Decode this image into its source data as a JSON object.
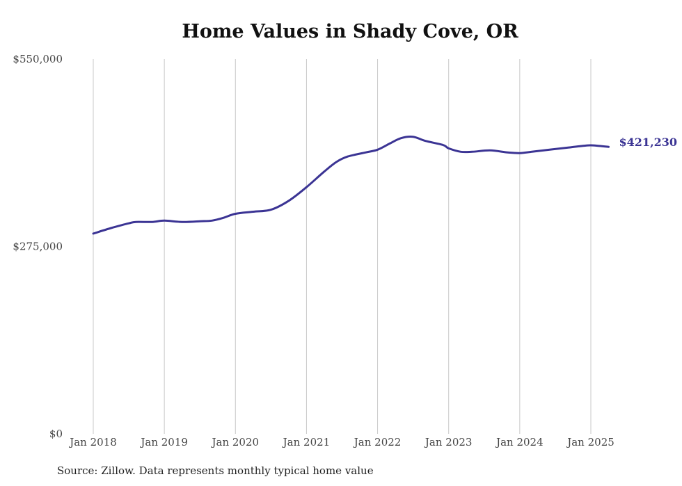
{
  "chart_data": {
    "type": "line",
    "title": "Home Values in Shady Cove, OR",
    "source": "Source: Zillow. Data represents monthly typical home value",
    "ylim": [
      0,
      550000
    ],
    "y_ticks": [
      {
        "value": 0,
        "label": "$0"
      },
      {
        "value": 275000,
        "label": "$275,000"
      },
      {
        "value": 550000,
        "label": "$550,000"
      }
    ],
    "x_ticks": [
      {
        "value": 2018,
        "label": "Jan 2018"
      },
      {
        "value": 2019,
        "label": "Jan 2019"
      },
      {
        "value": 2020,
        "label": "Jan 2020"
      },
      {
        "value": 2021,
        "label": "Jan 2021"
      },
      {
        "value": 2022,
        "label": "Jan 2022"
      },
      {
        "value": 2023,
        "label": "Jan 2023"
      },
      {
        "value": 2024,
        "label": "Jan 2024"
      },
      {
        "value": 2025,
        "label": "Jan 2025"
      }
    ],
    "xlim": [
      2018,
      2025.25
    ],
    "grid": "vertical",
    "line_color": "#3b3494",
    "end_label": "$421,230",
    "series": [
      {
        "x": [
          2018.0,
          2018.25,
          2018.5,
          2018.6,
          2018.83,
          2019.0,
          2019.25,
          2019.5,
          2019.67,
          2019.83,
          2020.0,
          2020.25,
          2020.5,
          2020.75,
          2021.0,
          2021.25,
          2021.42,
          2021.58,
          2021.83,
          2022.0,
          2022.17,
          2022.33,
          2022.5,
          2022.67,
          2022.92,
          2023.0,
          2023.17,
          2023.33,
          2023.58,
          2023.83,
          2024.0,
          2024.17,
          2024.42,
          2024.67,
          2024.92,
          2025.0,
          2025.08,
          2025.25
        ],
        "y": [
          294000,
          302000,
          309000,
          311000,
          311000,
          313000,
          311000,
          312000,
          313000,
          317000,
          323000,
          326000,
          329000,
          342000,
          362000,
          385000,
          399000,
          407000,
          413000,
          417000,
          426000,
          434000,
          436000,
          430000,
          424000,
          419000,
          414000,
          414000,
          416000,
          413000,
          412000,
          414000,
          417000,
          420000,
          423000,
          423500,
          423000,
          421230
        ]
      }
    ]
  }
}
